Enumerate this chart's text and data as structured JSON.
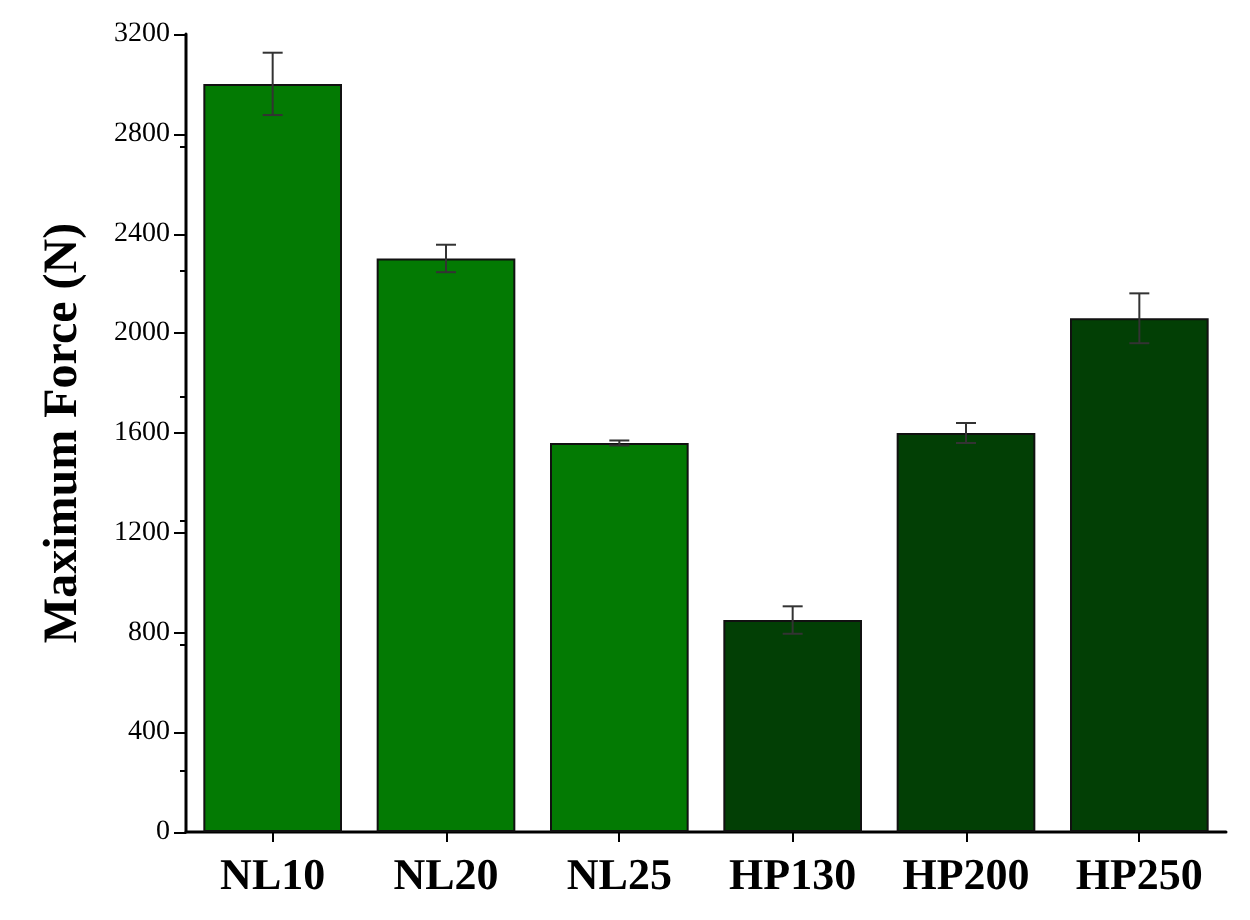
{
  "chart_data": {
    "type": "bar",
    "ylabel": "Maximum Force (N)",
    "categories": [
      "NL10",
      "NL20",
      "NL25",
      "HP130",
      "HP200",
      "HP250"
    ],
    "values": [
      3000,
      2300,
      1560,
      850,
      1600,
      2060
    ],
    "errors": [
      125,
      55,
      10,
      55,
      40,
      100
    ],
    "colors": [
      "#037a03",
      "#037a03",
      "#037a03",
      "#023f05",
      "#023f05",
      "#023f05"
    ],
    "ylim": [
      0,
      3200
    ],
    "yticks": [
      0,
      400,
      800,
      1200,
      1600,
      2000,
      2400,
      2800,
      3200
    ],
    "grid": false
  }
}
